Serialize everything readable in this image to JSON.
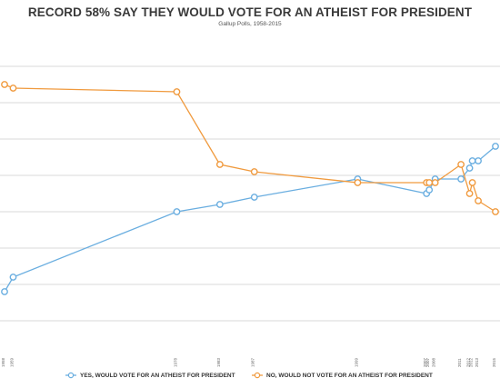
{
  "title": "RECORD 58% SAY THEY WOULD VOTE FOR AN ATHEIST FOR PRESIDENT",
  "subtitle": "Gallup Polls, 1958-2015",
  "colors": {
    "yes": "#6aaee0",
    "no": "#f09a3e",
    "grid": "#d9d9d9",
    "text": "#444444"
  },
  "chart_data": {
    "type": "line",
    "title": "RECORD 58% SAY THEY WOULD VOTE FOR AN ATHEIST FOR PRESIDENT",
    "subtitle": "Gallup Polls, 1958-2015",
    "xlabel": "",
    "ylabel": "",
    "ylim": [
      10,
      80
    ],
    "grid": true,
    "legend": "bottom",
    "x": [
      "1958",
      "1959",
      "1978",
      "1983",
      "1987",
      "1999",
      "2007",
      "2007",
      "2008",
      "2011",
      "2012",
      "2012",
      "2013",
      "2015"
    ],
    "series": [
      {
        "name": "YES, WOULD VOTE FOR AN ATHEIST FOR PRESIDENT",
        "color": "#6aaee0",
        "values": [
          18,
          22,
          40,
          42,
          44,
          49,
          45,
          46,
          49,
          49,
          52,
          54,
          54,
          58
        ]
      },
      {
        "name": "NO, WOULD NOT VOTE FOR AN ATHEIST FOR PRESIDENT",
        "color": "#f09a3e",
        "values": [
          75,
          74,
          73,
          53,
          51,
          48,
          48,
          48,
          48,
          53,
          45,
          48,
          43,
          40
        ]
      }
    ]
  }
}
